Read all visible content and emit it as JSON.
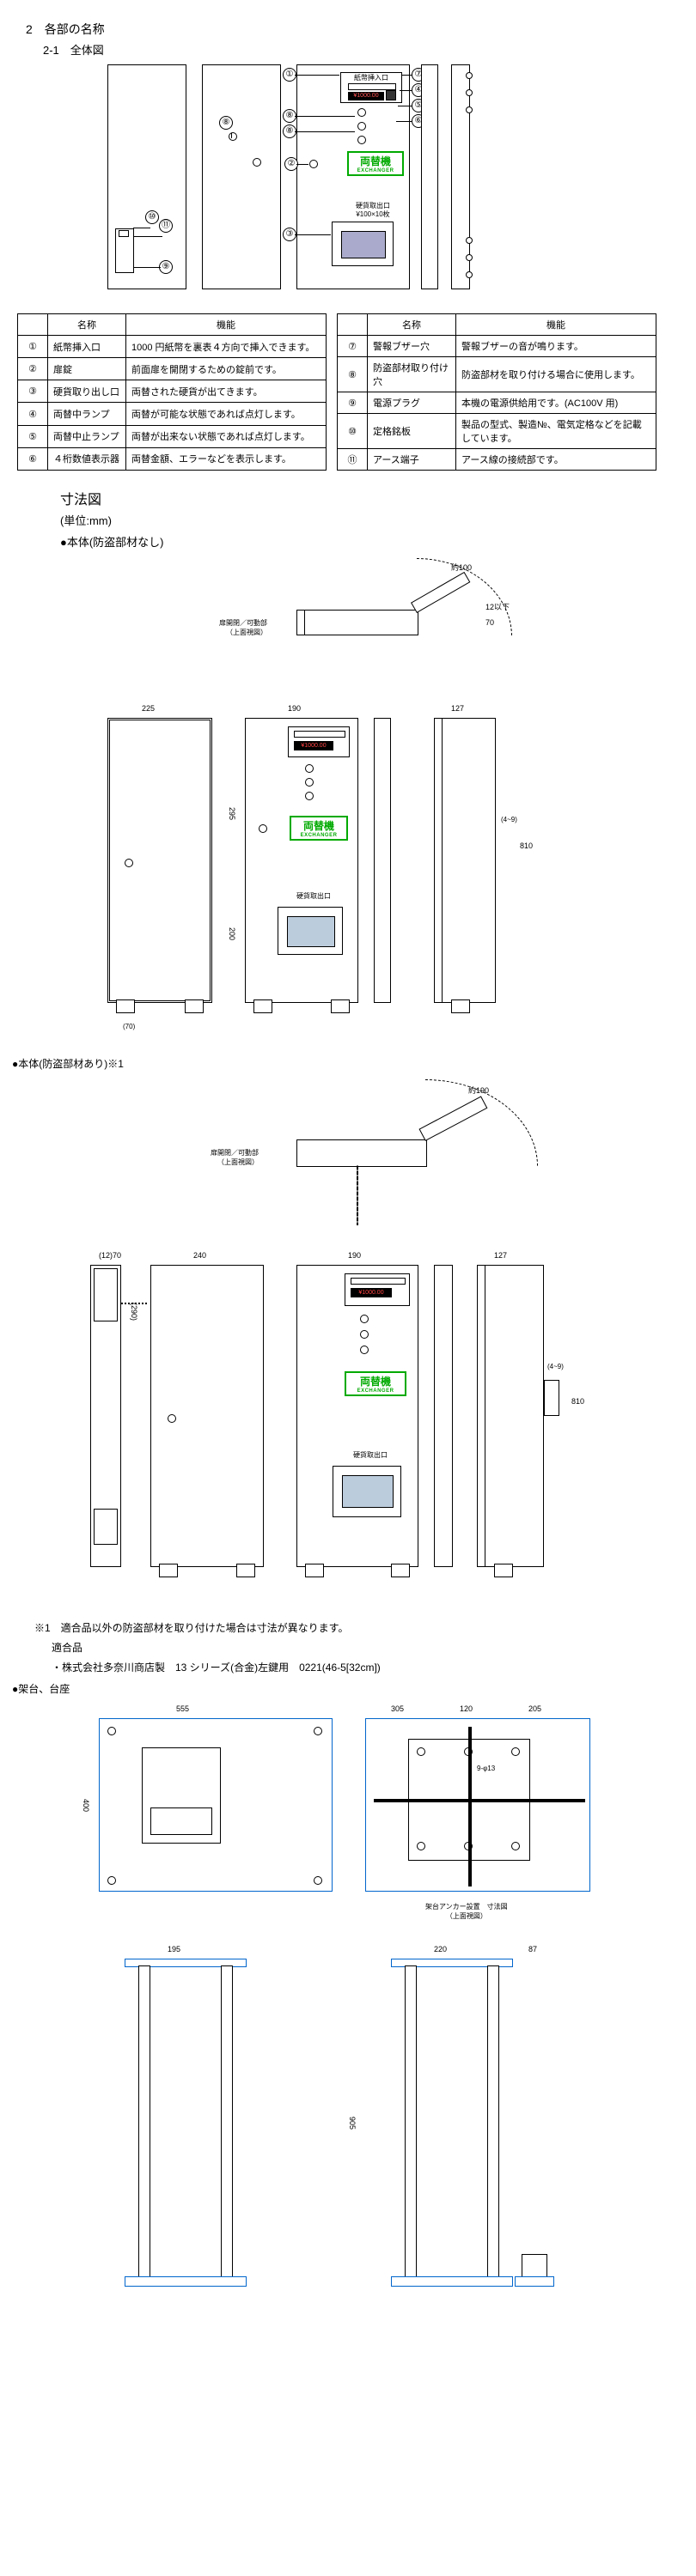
{
  "headings": {
    "section": "2　各部の名称",
    "sub": "2-1　全体図",
    "dim_title": "寸法図",
    "dim_unit": "(単位:mm)",
    "body_plain": "●本体(防盗部材なし)",
    "body_guard": "●本体(防盗部材あり)※1",
    "note1": "※1　適合品以外の防盗部材を取り付けた場合は寸法が異なります。",
    "note1b": "適合品",
    "note1c": "・株式会社多奈川商店製　13 シリーズ(合金)左鍵用　0221(46-5[32cm])",
    "stand": "●架台、台座"
  },
  "panelC": {
    "insert_label": "紙幣挿入口",
    "amount": "¥1000.00",
    "kanji": "両替機",
    "kanji_en": "EXCHANGER",
    "coin_out": "硬貨取出口",
    "coin_amt": "¥100×10枚"
  },
  "table_left": {
    "headers": [
      "",
      "名称",
      "機能"
    ],
    "rows": [
      [
        "①",
        "紙幣挿入口",
        "1000 円紙幣を裏表４方向で挿入できます。"
      ],
      [
        "②",
        "扉錠",
        "前面扉を開閉するための錠前です。"
      ],
      [
        "③",
        "硬貨取り出し口",
        "両替された硬貨が出てきます。"
      ],
      [
        "④",
        "両替中ランプ",
        "両替が可能な状態であれば点灯します。"
      ],
      [
        "⑤",
        "両替中止ランプ",
        "両替が出来ない状態であれば点灯します。"
      ],
      [
        "⑥",
        "４桁数値表示器",
        "両替金額、エラーなどを表示します。"
      ]
    ]
  },
  "table_right": {
    "headers": [
      "",
      "名称",
      "機能"
    ],
    "rows": [
      [
        "⑦",
        "警報ブザー穴",
        "警報ブザーの音が鳴ります。"
      ],
      [
        "⑧",
        "防盗部材取り付け穴",
        "防盗部材を取り付ける場合に使用します。"
      ],
      [
        "⑨",
        "電源プラグ",
        "本機の電源供給用です。(AC100V 用)"
      ],
      [
        "⑩",
        "定格銘板",
        "製品の型式、製造№、電気定格などを記載しています。"
      ],
      [
        "⑪",
        "アース端子",
        "アース線の接続部です。"
      ]
    ]
  },
  "dims": {
    "plain_top": {
      "label": "約100",
      "w1": "225",
      "w2": "190",
      "w3": "127",
      "h1": "70",
      "h2": "12以下"
    },
    "plain_front": {
      "h": "810",
      "h2": "200",
      "h3": "295",
      "w1": "225",
      "w2": "190",
      "w3": "127",
      "gap": "(4~9)",
      "depth": "70"
    },
    "misc": {
      "note_top": "扉開閉／可動部\n（上面視図）",
      "foot": "(70)"
    },
    "guard_top": {
      "label": "約190",
      "note": "扉開閉／可動部\n（上面視図）"
    },
    "guard_front": {
      "w1": "(12)70",
      "w2": "240",
      "w3": "190",
      "w4": "127",
      "h": "(290)",
      "h2": "810",
      "depth": "(4~9)"
    },
    "stand1": {
      "w": "555",
      "w2": "305",
      "w3": "120",
      "w4": "205",
      "h": "400",
      "hole": "9-φ13",
      "cap": "架台アンカー設置　寸法図\n（上面視図）"
    },
    "stand2": {
      "w1": "195",
      "w2": "220",
      "w3": "87",
      "h": "905"
    }
  }
}
